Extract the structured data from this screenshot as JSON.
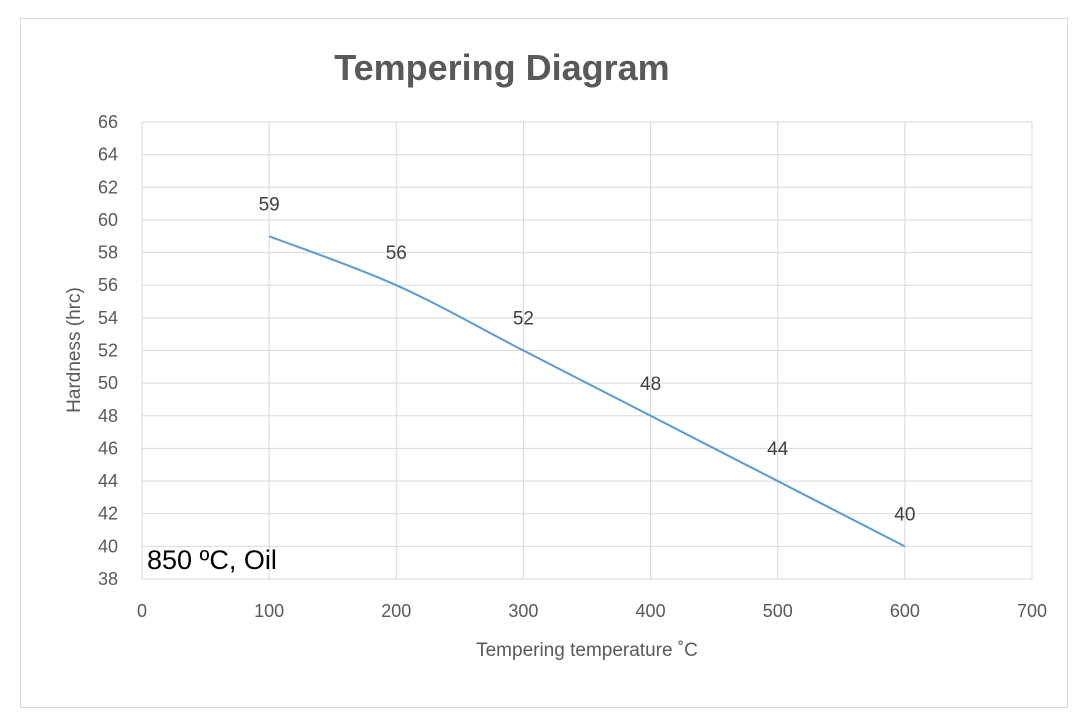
{
  "chart_data": {
    "type": "line",
    "title": "Tempering Diagram",
    "xlabel": "Tempering temperature ˚C",
    "ylabel": "Hardness (hrc)",
    "xlim": [
      0,
      700
    ],
    "ylim": [
      38,
      66
    ],
    "xticks": [
      0,
      100,
      200,
      300,
      400,
      500,
      600,
      700
    ],
    "yticks": [
      38,
      40,
      42,
      44,
      46,
      48,
      50,
      52,
      54,
      56,
      58,
      60,
      62,
      64,
      66
    ],
    "grid": true,
    "series": [
      {
        "name": "Hardness",
        "x": [
          100,
          200,
          300,
          400,
          500,
          600
        ],
        "values": [
          59,
          56,
          52,
          48,
          44,
          40
        ],
        "data_labels": [
          "59",
          "56",
          "52",
          "48",
          "44",
          "40"
        ],
        "color": "#5b9bd5"
      }
    ],
    "annotation": "850 ºC, Oil"
  },
  "colors": {
    "gridline": "#d9d9d9",
    "line": "#5b9bd5",
    "text": "#595959"
  }
}
